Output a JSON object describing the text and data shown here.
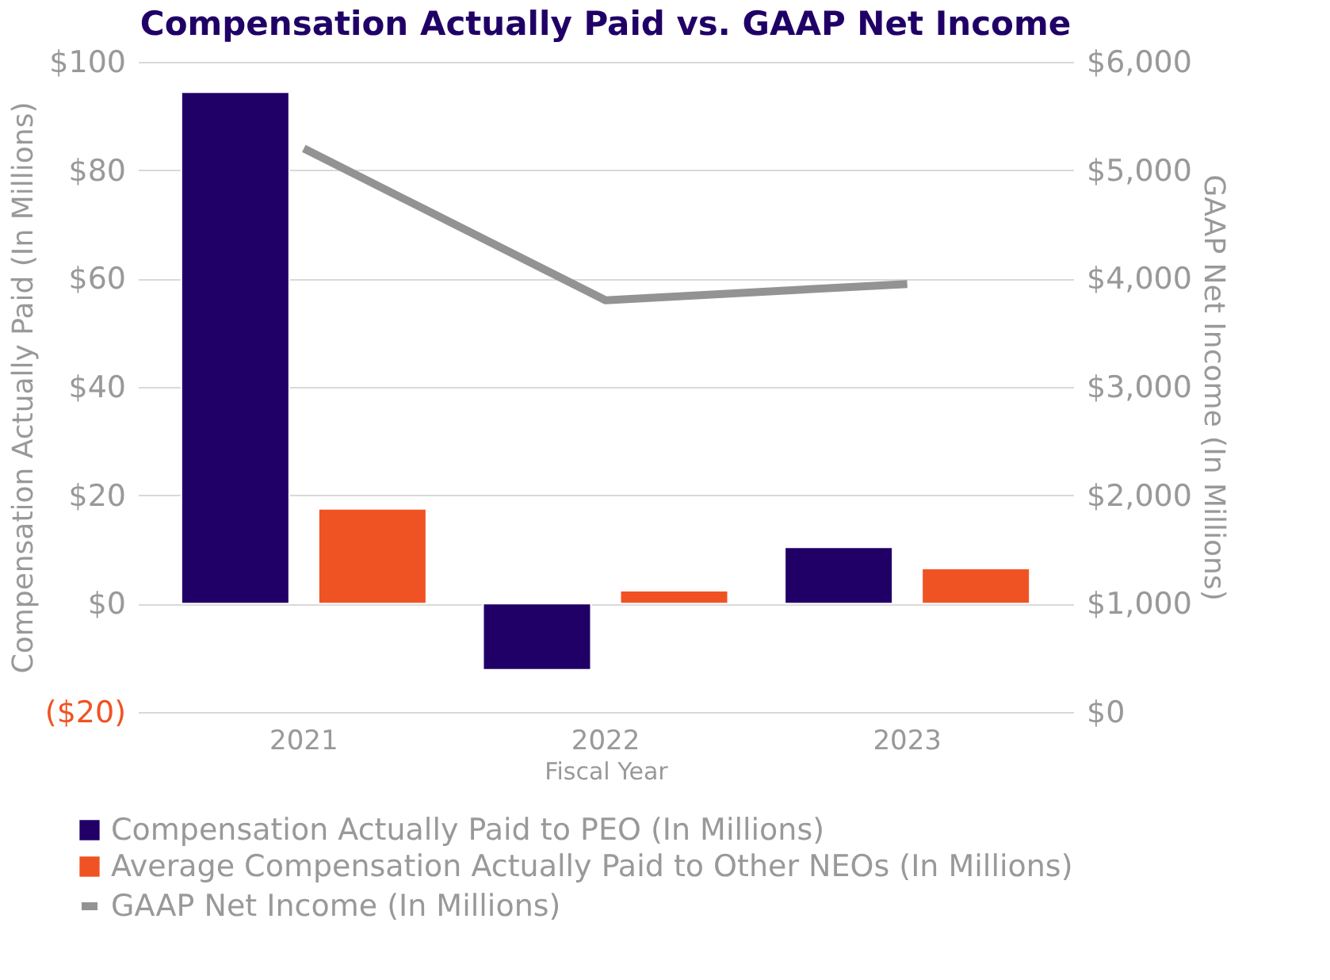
{
  "chart_data": {
    "type": "bar",
    "title": "Compensation Actually Paid vs. GAAP Net Income",
    "categories": [
      "2021",
      "2022",
      "2023"
    ],
    "xlabel": "Fiscal Year",
    "ylabel": "Compensation Actually Paid (In Millions)",
    "y2label": "GAAP Net Income (In Millions)",
    "series": [
      {
        "name": "Compensation Actually Paid to PEO (In Millions)",
        "color": "#200066",
        "values": [
          94.4,
          -12.2,
          10.4
        ]
      },
      {
        "name": "Average Compensation Actually Paid to Other NEOs (In Millions)",
        "color": "#f05323",
        "values": [
          17.5,
          2.4,
          6.5
        ]
      },
      {
        "name": "GAAP Net Income (In Millions)",
        "type": "line",
        "axis": "y2",
        "color": "#939393",
        "values": [
          5200,
          3800,
          3950
        ]
      }
    ],
    "ylim": [
      -20,
      100
    ],
    "yticks": [
      {
        "value": -20,
        "label": "($20)"
      },
      {
        "value": 0,
        "label": "$0"
      },
      {
        "value": 20,
        "label": "$20"
      },
      {
        "value": 40,
        "label": "$40"
      },
      {
        "value": 60,
        "label": "$60"
      },
      {
        "value": 80,
        "label": "$80"
      },
      {
        "value": 100,
        "label": "$100"
      }
    ],
    "y2lim": [
      0,
      6000
    ],
    "y2ticks": [
      {
        "value": 0,
        "label": "$0"
      },
      {
        "value": 1000,
        "label": "$1,000"
      },
      {
        "value": 2000,
        "label": "$2,000"
      },
      {
        "value": 3000,
        "label": "$3,000"
      },
      {
        "value": 4000,
        "label": "$4,000"
      },
      {
        "value": 5000,
        "label": "$5,000"
      },
      {
        "value": 6000,
        "label": "$6,000"
      }
    ],
    "grid": "y",
    "legend": "bottom left",
    "marker": "none"
  }
}
